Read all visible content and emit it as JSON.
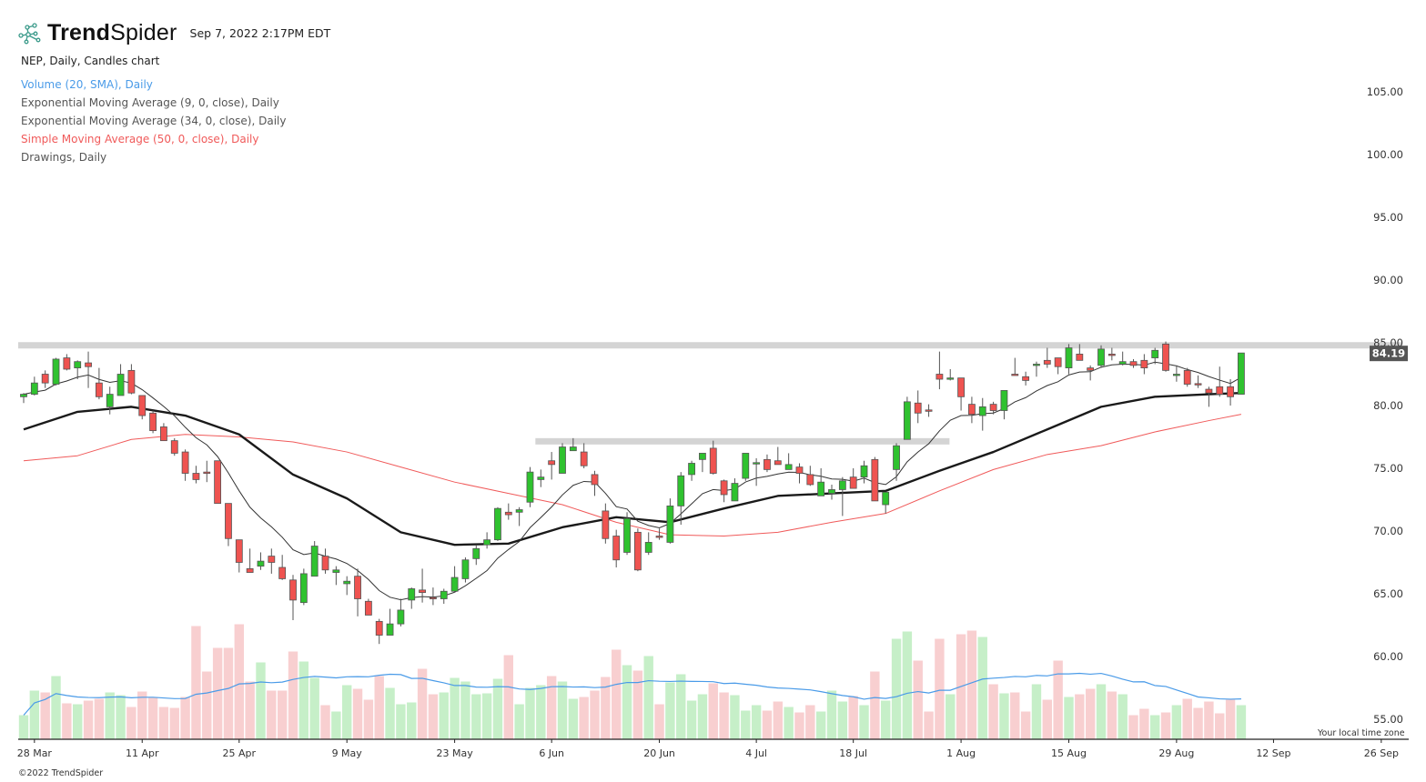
{
  "header": {
    "brand_bold": "Trend",
    "brand_light": "Spider",
    "timestamp": "Sep 7, 2022 2:17PM EDT"
  },
  "legend": {
    "symbol_line": "NEP, Daily, Candles chart",
    "items": [
      {
        "label": "Volume (20, SMA), Daily",
        "color": "#4a9be8"
      },
      {
        "label": "Exponential Moving Average (9, 0, close), Daily",
        "color": "#555555"
      },
      {
        "label": "Exponential Moving Average (34, 0, close), Daily",
        "color": "#555555"
      },
      {
        "label": "Simple Moving Average (50, 0, close), Daily",
        "color": "#f05a5a"
      },
      {
        "label": "Drawings, Daily",
        "color": "#555555"
      }
    ]
  },
  "footer": {
    "copyright": "©2022 TrendSpider",
    "timezone": "Your local time zone"
  },
  "colors": {
    "up": "#2fc22f",
    "down": "#ef5350",
    "candle_border": "#555555",
    "volume_up": "#c6efc8",
    "volume_down": "#f8cfd0",
    "volume_sma": "#4a9be8",
    "ema9": "#333333",
    "ema34": "#1a1a1a",
    "sma50": "#f05a5a",
    "drawing": "#d4d4d4",
    "price_tag": "#555555"
  },
  "chart_data": {
    "type": "candlestick",
    "symbol": "NEP",
    "interval": "Daily",
    "current_price": "84.19",
    "y_ticks": [
      "55.00",
      "60.00",
      "65.00",
      "70.00",
      "75.00",
      "80.00",
      "85.00",
      "90.00",
      "95.00",
      "100.00",
      "105.00"
    ],
    "x_ticks": [
      {
        "label": "28 Mar",
        "date": "2022-03-28"
      },
      {
        "label": "11 Apr",
        "date": "2022-04-11"
      },
      {
        "label": "25 Apr",
        "date": "2022-04-25"
      },
      {
        "label": "9 May",
        "date": "2022-05-09"
      },
      {
        "label": "23 May",
        "date": "2022-05-23"
      },
      {
        "label": "6 Jun",
        "date": "2022-06-06"
      },
      {
        "label": "20 Jun",
        "date": "2022-06-20"
      },
      {
        "label": "4 Jul",
        "date": "2022-07-04"
      },
      {
        "label": "18 Jul",
        "date": "2022-07-18"
      },
      {
        "label": "1 Aug",
        "date": "2022-08-01"
      },
      {
        "label": "15 Aug",
        "date": "2022-08-15"
      },
      {
        "label": "29 Aug",
        "date": "2022-08-29"
      },
      {
        "label": "12 Sep",
        "date": "2022-09-12"
      },
      {
        "label": "26 Sep",
        "date": "2022-09-26"
      }
    ],
    "candle_fields": [
      "date",
      "open",
      "high",
      "low",
      "close",
      "volume_relative"
    ],
    "candles": [
      [
        "2022-03-25",
        80.7,
        81.0,
        80.2,
        80.9,
        26
      ],
      [
        "2022-03-28",
        80.9,
        82.3,
        80.8,
        81.8,
        53
      ],
      [
        "2022-03-29",
        82.5,
        82.8,
        81.4,
        81.8,
        51
      ],
      [
        "2022-03-30",
        81.7,
        83.8,
        81.6,
        83.7,
        69
      ],
      [
        "2022-03-31",
        83.8,
        84.1,
        82.8,
        82.9,
        39
      ],
      [
        "2022-04-01",
        83.0,
        83.6,
        82.1,
        83.5,
        38
      ],
      [
        "2022-04-04",
        83.4,
        84.3,
        81.4,
        83.1,
        42
      ],
      [
        "2022-04-05",
        81.8,
        83.0,
        80.5,
        80.7,
        44
      ],
      [
        "2022-04-06",
        79.9,
        81.5,
        79.3,
        80.9,
        51
      ],
      [
        "2022-04-07",
        80.8,
        83.3,
        80.8,
        82.5,
        48
      ],
      [
        "2022-04-08",
        82.8,
        83.3,
        80.9,
        81.0,
        35
      ],
      [
        "2022-04-11",
        80.8,
        80.8,
        78.9,
        79.2,
        52
      ],
      [
        "2022-04-12",
        79.4,
        79.6,
        77.8,
        78.0,
        46
      ],
      [
        "2022-04-13",
        78.3,
        78.6,
        77.2,
        77.2,
        35
      ],
      [
        "2022-04-14",
        77.2,
        77.4,
        76.0,
        76.2,
        34
      ],
      [
        "2022-04-18",
        76.3,
        76.5,
        74.0,
        74.6,
        46
      ],
      [
        "2022-04-19",
        74.6,
        75.2,
        73.8,
        74.1,
        124
      ],
      [
        "2022-04-20",
        74.7,
        75.6,
        73.9,
        74.6,
        74
      ],
      [
        "2022-04-21",
        75.6,
        75.6,
        72.2,
        72.2,
        100
      ],
      [
        "2022-04-22",
        72.2,
        72.2,
        68.8,
        69.4,
        100
      ],
      [
        "2022-04-25",
        69.3,
        69.3,
        66.7,
        67.5,
        126
      ],
      [
        "2022-04-26",
        67.0,
        68.6,
        66.7,
        66.7,
        63
      ],
      [
        "2022-04-27",
        67.2,
        68.3,
        66.9,
        67.6,
        84
      ],
      [
        "2022-04-28",
        68.0,
        68.6,
        66.6,
        67.5,
        53
      ],
      [
        "2022-04-29",
        67.1,
        68.1,
        66.1,
        66.2,
        53
      ],
      [
        "2022-05-02",
        66.1,
        66.5,
        62.9,
        64.5,
        96
      ],
      [
        "2022-05-03",
        64.3,
        67.0,
        64.1,
        66.6,
        85
      ],
      [
        "2022-05-04",
        66.4,
        69.2,
        66.4,
        68.8,
        67
      ],
      [
        "2022-05-05",
        68.0,
        68.6,
        66.6,
        66.9,
        37
      ],
      [
        "2022-05-06",
        66.7,
        67.2,
        65.7,
        66.9,
        30
      ],
      [
        "2022-05-09",
        65.8,
        66.4,
        64.9,
        66.0,
        59
      ],
      [
        "2022-05-10",
        66.4,
        67.0,
        63.2,
        64.6,
        55
      ],
      [
        "2022-05-11",
        64.4,
        64.6,
        63.3,
        63.3,
        43
      ],
      [
        "2022-05-12",
        62.8,
        63.0,
        61.0,
        61.7,
        69
      ],
      [
        "2022-05-13",
        61.7,
        63.8,
        61.7,
        62.6,
        56
      ],
      [
        "2022-05-16",
        62.6,
        64.6,
        62.4,
        63.7,
        38
      ],
      [
        "2022-05-17",
        64.5,
        65.5,
        63.8,
        65.4,
        40
      ],
      [
        "2022-05-18",
        65.3,
        67.0,
        64.3,
        65.1,
        77
      ],
      [
        "2022-05-19",
        64.7,
        65.5,
        64.1,
        64.6,
        49
      ],
      [
        "2022-05-20",
        64.6,
        65.4,
        64.2,
        65.2,
        51
      ],
      [
        "2022-05-23",
        65.2,
        67.2,
        65.1,
        66.3,
        67
      ],
      [
        "2022-05-24",
        66.2,
        67.9,
        65.9,
        67.7,
        63
      ],
      [
        "2022-05-25",
        67.8,
        68.9,
        67.3,
        68.6,
        49
      ],
      [
        "2022-05-26",
        68.9,
        69.9,
        68.6,
        69.3,
        50
      ],
      [
        "2022-05-27",
        69.3,
        71.9,
        69.2,
        71.8,
        66
      ],
      [
        "2022-05-31",
        71.5,
        72.2,
        70.9,
        71.3,
        92
      ],
      [
        "2022-06-01",
        71.5,
        71.9,
        70.4,
        71.7,
        38
      ],
      [
        "2022-06-02",
        72.3,
        75.1,
        71.9,
        74.7,
        56
      ],
      [
        "2022-06-03",
        74.1,
        74.9,
        73.5,
        74.3,
        59
      ],
      [
        "2022-06-06",
        75.6,
        76.3,
        74.1,
        75.3,
        69
      ],
      [
        "2022-06-07",
        74.6,
        77.0,
        74.6,
        76.7,
        63
      ],
      [
        "2022-06-08",
        76.4,
        77.4,
        76.4,
        76.7,
        44
      ],
      [
        "2022-06-09",
        76.3,
        77.0,
        75.0,
        75.2,
        46
      ],
      [
        "2022-06-10",
        74.5,
        74.8,
        72.8,
        73.7,
        53
      ],
      [
        "2022-06-13",
        71.6,
        72.2,
        69.0,
        69.4,
        68
      ],
      [
        "2022-06-14",
        69.6,
        70.1,
        67.1,
        67.7,
        98
      ],
      [
        "2022-06-15",
        68.3,
        71.5,
        68.1,
        71.0,
        81
      ],
      [
        "2022-06-16",
        69.9,
        70.2,
        66.8,
        66.9,
        75
      ],
      [
        "2022-06-17",
        68.3,
        69.9,
        68.1,
        69.1,
        91
      ],
      [
        "2022-06-21",
        69.6,
        70.2,
        69.3,
        69.5,
        38
      ],
      [
        "2022-06-22",
        69.1,
        72.6,
        69.0,
        72.0,
        62
      ],
      [
        "2022-06-23",
        72.0,
        74.7,
        70.5,
        74.4,
        71
      ],
      [
        "2022-06-24",
        74.5,
        75.6,
        74.0,
        75.4,
        42
      ],
      [
        "2022-06-27",
        75.7,
        76.2,
        74.7,
        76.2,
        49
      ],
      [
        "2022-06-28",
        76.6,
        77.2,
        74.5,
        74.6,
        61
      ],
      [
        "2022-06-29",
        74.0,
        74.1,
        72.3,
        72.9,
        51
      ],
      [
        "2022-06-30",
        72.4,
        74.2,
        72.4,
        73.8,
        48
      ],
      [
        "2022-07-01",
        74.2,
        76.2,
        74.0,
        76.2,
        31
      ],
      [
        "2022-07-05",
        75.4,
        75.8,
        73.6,
        75.45,
        37
      ],
      [
        "2022-07-06",
        75.7,
        76.1,
        74.7,
        74.9,
        31
      ],
      [
        "2022-07-07",
        75.6,
        76.7,
        75.3,
        75.3,
        41
      ],
      [
        "2022-07-08",
        74.9,
        76.2,
        74.9,
        75.3,
        35
      ],
      [
        "2022-07-11",
        75.1,
        75.4,
        73.8,
        74.6,
        29
      ],
      [
        "2022-07-12",
        74.5,
        75.2,
        73.6,
        73.7,
        37
      ],
      [
        "2022-07-13",
        72.8,
        75.0,
        72.8,
        73.9,
        30
      ],
      [
        "2022-07-14",
        73.0,
        73.7,
        72.5,
        73.3,
        53
      ],
      [
        "2022-07-15",
        73.3,
        74.3,
        71.2,
        74.0,
        41
      ],
      [
        "2022-07-18",
        74.3,
        75.0,
        73.4,
        73.4,
        47
      ],
      [
        "2022-07-19",
        74.3,
        75.6,
        73.8,
        75.2,
        37
      ],
      [
        "2022-07-20",
        75.7,
        75.9,
        72.4,
        72.4,
        74
      ],
      [
        "2022-07-21",
        72.1,
        73.1,
        71.4,
        73.1,
        42
      ],
      [
        "2022-07-22",
        74.9,
        77.0,
        74.0,
        76.8,
        110
      ],
      [
        "2022-07-25",
        77.3,
        80.7,
        77.3,
        80.3,
        118
      ],
      [
        "2022-07-26",
        80.2,
        81.2,
        78.6,
        79.4,
        86
      ],
      [
        "2022-07-27",
        79.65,
        80.1,
        79.1,
        79.6,
        30
      ],
      [
        "2022-07-28",
        82.5,
        84.3,
        81.3,
        82.1,
        110
      ],
      [
        "2022-07-29",
        82.15,
        82.9,
        82.0,
        82.2,
        49
      ],
      [
        "2022-08-01",
        82.2,
        82.2,
        79.6,
        80.7,
        115
      ],
      [
        "2022-08-02",
        80.1,
        80.7,
        78.6,
        79.3,
        119
      ],
      [
        "2022-08-03",
        79.2,
        80.6,
        78.0,
        79.9,
        112
      ],
      [
        "2022-08-04",
        80.1,
        80.3,
        79.3,
        79.6,
        60
      ],
      [
        "2022-08-05",
        79.6,
        81.2,
        78.9,
        81.2,
        50
      ],
      [
        "2022-08-08",
        82.5,
        83.8,
        82.4,
        82.4,
        51
      ],
      [
        "2022-08-09",
        82.3,
        82.7,
        81.6,
        82.0,
        30
      ],
      [
        "2022-08-10",
        83.25,
        83.5,
        82.3,
        83.3,
        60
      ],
      [
        "2022-08-11",
        83.6,
        84.6,
        83.0,
        83.3,
        43
      ],
      [
        "2022-08-12",
        83.8,
        83.8,
        82.5,
        83.1,
        86
      ],
      [
        "2022-08-15",
        83.0,
        84.9,
        82.5,
        84.6,
        46
      ],
      [
        "2022-08-16",
        84.1,
        84.9,
        83.6,
        83.6,
        49
      ],
      [
        "2022-08-17",
        83.0,
        83.2,
        82.0,
        82.8,
        55
      ],
      [
        "2022-08-18",
        83.2,
        84.8,
        83.0,
        84.5,
        60
      ],
      [
        "2022-08-19",
        84.1,
        84.6,
        83.6,
        84.0,
        52
      ],
      [
        "2022-08-22",
        83.3,
        84.3,
        83.2,
        83.5,
        49
      ],
      [
        "2022-08-23",
        83.5,
        83.7,
        83.0,
        83.2,
        26
      ],
      [
        "2022-08-24",
        83.6,
        84.1,
        82.5,
        83.0,
        33
      ],
      [
        "2022-08-25",
        83.8,
        84.6,
        83.3,
        84.4,
        26
      ],
      [
        "2022-08-26",
        84.9,
        85.1,
        82.7,
        82.8,
        29
      ],
      [
        "2022-08-29",
        82.4,
        83.2,
        81.9,
        82.5,
        37
      ],
      [
        "2022-08-30",
        82.8,
        83.0,
        81.5,
        81.7,
        44
      ],
      [
        "2022-08-31",
        81.75,
        82.4,
        81.4,
        81.7,
        34
      ],
      [
        "2022-09-01",
        81.3,
        81.5,
        79.9,
        81.0,
        41
      ],
      [
        "2022-09-02",
        81.5,
        83.1,
        80.7,
        80.9,
        28
      ],
      [
        "2022-09-06",
        81.5,
        82.1,
        80.0,
        80.7,
        43
      ],
      [
        "2022-09-07",
        80.9,
        84.19,
        80.9,
        84.19,
        37
      ]
    ],
    "ema34": [
      [
        "2022-03-25",
        78.1
      ],
      [
        "2022-04-01",
        79.5
      ],
      [
        "2022-04-08",
        79.9
      ],
      [
        "2022-04-18",
        79.2
      ],
      [
        "2022-04-25",
        77.7
      ],
      [
        "2022-05-02",
        74.5
      ],
      [
        "2022-05-09",
        72.6
      ],
      [
        "2022-05-16",
        69.9
      ],
      [
        "2022-05-23",
        68.9
      ],
      [
        "2022-05-31",
        69.0
      ],
      [
        "2022-06-07",
        70.3
      ],
      [
        "2022-06-14",
        71.1
      ],
      [
        "2022-06-22",
        70.7
      ],
      [
        "2022-06-29",
        71.8
      ],
      [
        "2022-07-07",
        72.8
      ],
      [
        "2022-07-14",
        73.0
      ],
      [
        "2022-07-21",
        73.2
      ],
      [
        "2022-07-28",
        74.8
      ],
      [
        "2022-08-04",
        76.3
      ],
      [
        "2022-08-11",
        78.1
      ],
      [
        "2022-08-18",
        79.9
      ],
      [
        "2022-08-25",
        80.7
      ],
      [
        "2022-09-01",
        80.9
      ],
      [
        "2022-09-07",
        81.0
      ]
    ],
    "sma50": [
      [
        "2022-03-25",
        75.6
      ],
      [
        "2022-04-01",
        76.0
      ],
      [
        "2022-04-08",
        77.3
      ],
      [
        "2022-04-18",
        77.7
      ],
      [
        "2022-04-25",
        77.5
      ],
      [
        "2022-05-02",
        77.1
      ],
      [
        "2022-05-09",
        76.3
      ],
      [
        "2022-05-16",
        75.1
      ],
      [
        "2022-05-23",
        73.9
      ],
      [
        "2022-05-31",
        73.0
      ],
      [
        "2022-06-07",
        72.1
      ],
      [
        "2022-06-14",
        70.7
      ],
      [
        "2022-06-22",
        69.7
      ],
      [
        "2022-06-29",
        69.6
      ],
      [
        "2022-07-07",
        69.9
      ],
      [
        "2022-07-14",
        70.7
      ],
      [
        "2022-07-21",
        71.4
      ],
      [
        "2022-07-28",
        73.2
      ],
      [
        "2022-08-04",
        74.9
      ],
      [
        "2022-08-11",
        76.1
      ],
      [
        "2022-08-18",
        76.8
      ],
      [
        "2022-08-25",
        77.9
      ],
      [
        "2022-09-01",
        78.8
      ],
      [
        "2022-09-07",
        79.3
      ]
    ],
    "drawings": [
      {
        "type": "horizontal-level",
        "price": 84.8,
        "from": "2022-03-25",
        "to": "right-edge"
      },
      {
        "type": "horizontal-level",
        "price": 77.15,
        "from": "2022-06-03",
        "to": "2022-07-28"
      }
    ],
    "indicators": [
      "Volume SMA 20",
      "EMA 9",
      "EMA 34",
      "SMA 50"
    ],
    "grid": false,
    "y_axis_side": "right"
  }
}
